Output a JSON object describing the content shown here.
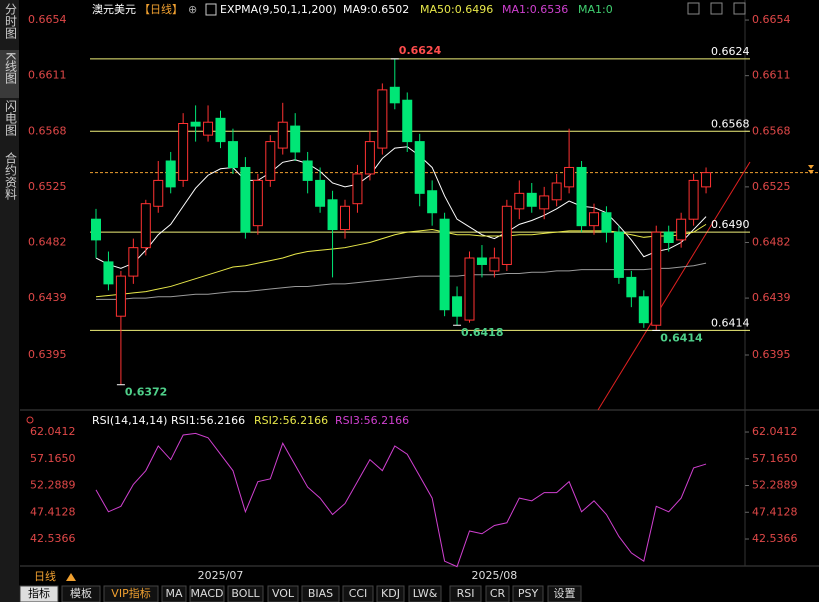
{
  "sidebar": [
    "分时图",
    "K线图",
    "闪电图",
    "合约资料"
  ],
  "header": {
    "symbol": "澳元美元",
    "period": "【日线】",
    "indicator": "EXPMA(9,50,1,1,200)",
    "ma9": "MA9:0.6502",
    "ma50": "MA50:0.6496",
    "ma1": "MA1:0.6536",
    "ma1b": "MA1:0"
  },
  "rsi_header": {
    "name": "RSI(14,14,14)",
    "rsi1": "RSI1:56.2166",
    "rsi2": "RSI2:56.2166",
    "rsi3": "RSI3:56.2166"
  },
  "chart_data": {
    "type": "candlestick",
    "ylim": [
      0.6352,
      0.6662
    ],
    "yticks": [
      0.6654,
      0.6611,
      0.6568,
      0.6525,
      0.6482,
      0.6439,
      0.6395
    ],
    "categories": [
      null,
      null,
      null,
      null,
      null,
      null,
      null,
      null,
      null,
      null,
      "2025/07",
      null,
      null,
      null,
      null,
      null,
      null,
      null,
      null,
      null,
      null,
      null,
      null,
      null,
      null,
      null,
      null,
      null,
      null,
      null,
      null,
      null,
      "2025/08",
      null,
      null,
      null,
      null,
      null,
      null,
      null,
      null,
      null,
      null,
      null,
      null,
      null,
      null,
      null,
      null,
      null
    ],
    "candles": [
      [
        0.65,
        0.6508,
        0.647,
        0.6484
      ],
      [
        0.6467,
        0.6475,
        0.6445,
        0.645
      ],
      [
        0.6425,
        0.646,
        0.6372,
        0.6456
      ],
      [
        0.6456,
        0.6485,
        0.645,
        0.6478
      ],
      [
        0.6478,
        0.6515,
        0.6472,
        0.6512
      ],
      [
        0.651,
        0.6545,
        0.6505,
        0.653
      ],
      [
        0.6545,
        0.6552,
        0.652,
        0.6525
      ],
      [
        0.653,
        0.6582,
        0.6525,
        0.6574
      ],
      [
        0.6575,
        0.6588,
        0.656,
        0.6572
      ],
      [
        0.6565,
        0.6588,
        0.656,
        0.6575
      ],
      [
        0.6578,
        0.6584,
        0.6555,
        0.656
      ],
      [
        0.656,
        0.657,
        0.6535,
        0.654
      ],
      [
        0.654,
        0.6548,
        0.6485,
        0.649
      ],
      [
        0.6495,
        0.6535,
        0.6488,
        0.653
      ],
      [
        0.653,
        0.6565,
        0.6525,
        0.656
      ],
      [
        0.6555,
        0.659,
        0.655,
        0.6575
      ],
      [
        0.6572,
        0.6582,
        0.6545,
        0.6552
      ],
      [
        0.6545,
        0.6552,
        0.652,
        0.653
      ],
      [
        0.653,
        0.654,
        0.6505,
        0.651
      ],
      [
        0.6515,
        0.6522,
        0.6455,
        0.6492
      ],
      [
        0.6492,
        0.6515,
        0.6485,
        0.651
      ],
      [
        0.6512,
        0.6542,
        0.6505,
        0.6535
      ],
      [
        0.6535,
        0.6568,
        0.653,
        0.656
      ],
      [
        0.6555,
        0.6605,
        0.655,
        0.66
      ],
      [
        0.6602,
        0.6624,
        0.6585,
        0.659
      ],
      [
        0.6592,
        0.6598,
        0.6552,
        0.656
      ],
      [
        0.656,
        0.6566,
        0.651,
        0.652
      ],
      [
        0.6522,
        0.653,
        0.6495,
        0.6505
      ],
      [
        0.65,
        0.6505,
        0.6425,
        0.643
      ],
      [
        0.644,
        0.6448,
        0.6418,
        0.6425
      ],
      [
        0.6422,
        0.6475,
        0.642,
        0.647
      ],
      [
        0.647,
        0.648,
        0.6455,
        0.6465
      ],
      [
        0.646,
        0.6478,
        0.6455,
        0.647
      ],
      [
        0.6465,
        0.6515,
        0.646,
        0.651
      ],
      [
        0.6508,
        0.653,
        0.65,
        0.652
      ],
      [
        0.652,
        0.6528,
        0.6505,
        0.651
      ],
      [
        0.6508,
        0.6525,
        0.65,
        0.6518
      ],
      [
        0.6515,
        0.6535,
        0.651,
        0.6528
      ],
      [
        0.6525,
        0.657,
        0.652,
        0.654
      ],
      [
        0.654,
        0.6545,
        0.649,
        0.6495
      ],
      [
        0.6495,
        0.6512,
        0.6488,
        0.6505
      ],
      [
        0.6505,
        0.651,
        0.6482,
        0.649
      ],
      [
        0.649,
        0.6495,
        0.645,
        0.6455
      ],
      [
        0.6455,
        0.646,
        0.6432,
        0.644
      ],
      [
        0.644,
        0.6445,
        0.6416,
        0.642
      ],
      [
        0.6418,
        0.6495,
        0.6414,
        0.649
      ],
      [
        0.649,
        0.6495,
        0.6475,
        0.6482
      ],
      [
        0.6484,
        0.6505,
        0.6478,
        0.65
      ],
      [
        0.65,
        0.6535,
        0.6495,
        0.653
      ],
      [
        0.6525,
        0.654,
        0.652,
        0.6536
      ]
    ],
    "up_color": "#ff3232",
    "down_color": "#00e676",
    "series": [
      {
        "color": "#ffffff",
        "values": [
          0.647,
          0.6465,
          0.6462,
          0.6466,
          0.6476,
          0.6488,
          0.6496,
          0.651,
          0.6524,
          0.6534,
          0.6539,
          0.654,
          0.653,
          0.653,
          0.6536,
          0.6544,
          0.6546,
          0.6543,
          0.6537,
          0.6528,
          0.6525,
          0.6527,
          0.6534,
          0.6547,
          0.6555,
          0.6556,
          0.6549,
          0.654,
          0.6518,
          0.65,
          0.6494,
          0.6488,
          0.6485,
          0.649,
          0.6496,
          0.6499,
          0.6503,
          0.6508,
          0.6514,
          0.651,
          0.6509,
          0.6505,
          0.6495,
          0.6484,
          0.6471,
          0.6475,
          0.6477,
          0.6482,
          0.6492,
          0.6502
        ]
      },
      {
        "color": "#e8e84a",
        "values": [
          0.644,
          0.6441,
          0.6442,
          0.6443,
          0.6444,
          0.6446,
          0.6448,
          0.6451,
          0.6454,
          0.6457,
          0.646,
          0.6463,
          0.6464,
          0.6466,
          0.6468,
          0.647,
          0.6473,
          0.6475,
          0.6476,
          0.6477,
          0.6478,
          0.648,
          0.6482,
          0.6485,
          0.6488,
          0.649,
          0.6491,
          0.6492,
          0.649,
          0.6488,
          0.6488,
          0.6487,
          0.6487,
          0.6487,
          0.6488,
          0.6488,
          0.6489,
          0.649,
          0.6491,
          0.6491,
          0.6491,
          0.6491,
          0.649,
          0.6488,
          0.6486,
          0.6487,
          0.6487,
          0.6488,
          0.649,
          0.6496
        ]
      },
      {
        "color": "#9a9a9a",
        "values": [
          0.6438,
          0.6438,
          0.6438,
          0.6439,
          0.6439,
          0.644,
          0.644,
          0.6441,
          0.6442,
          0.6442,
          0.6443,
          0.6444,
          0.6444,
          0.6445,
          0.6446,
          0.6447,
          0.6448,
          0.6448,
          0.6449,
          0.645,
          0.645,
          0.6451,
          0.6452,
          0.6453,
          0.6454,
          0.6455,
          0.6456,
          0.6456,
          0.6456,
          0.6456,
          0.6457,
          0.6457,
          0.6457,
          0.6458,
          0.6458,
          0.6459,
          0.6459,
          0.646,
          0.646,
          0.6461,
          0.6461,
          0.6461,
          0.6461,
          0.6461,
          0.6461,
          0.6462,
          0.6462,
          0.6463,
          0.6464,
          0.6466
        ]
      }
    ],
    "levels": [
      {
        "value": 0.6624,
        "label": "0.6624"
      },
      {
        "value": 0.6568,
        "label": "0.6568"
      },
      {
        "value": 0.649,
        "label": "0.6490"
      },
      {
        "value": 0.6414,
        "label": "0.6414"
      }
    ],
    "level_color": "#f0f07a",
    "point_labels": [
      {
        "value": 0.6624,
        "label": "0.6624",
        "color": "#ff4d4d"
      },
      {
        "value": 0.6372,
        "label": "0.6372",
        "color": "#4fd08a"
      },
      {
        "value": 0.6418,
        "label": "0.6418",
        "color": "#4fd08a"
      },
      {
        "value": 0.6414,
        "label": "0.6414",
        "color": "#4fd08a"
      }
    ],
    "rsi": {
      "ylim": [
        38.0,
        65.0
      ],
      "yticks": [
        62.0412,
        57.165,
        52.2889,
        47.4128,
        42.5366
      ],
      "ytick_labels": [
        "62.0412",
        "57.1650",
        "52.2889",
        "47.4128",
        "42.5366"
      ],
      "color": "#d040d0",
      "values": [
        51.5,
        47.5,
        48.5,
        52.5,
        55,
        59.5,
        57,
        61.5,
        61.8,
        61,
        58,
        55,
        47.5,
        53,
        53.5,
        60,
        56,
        52,
        50,
        47,
        49,
        53,
        57,
        55,
        59.5,
        58,
        54,
        50,
        38.5,
        37.5,
        44,
        43.5,
        45,
        45.5,
        50,
        49.5,
        51,
        51,
        53,
        47.5,
        49.5,
        47,
        43,
        40,
        38.5,
        48.5,
        47.5,
        50,
        55.5,
        56.2
      ]
    }
  },
  "period_button": "日线",
  "tabs": [
    "指标",
    "模板",
    "VIP指标",
    "MA",
    "MACD",
    "BOLL",
    "VOL",
    "BIAS",
    "CCI",
    "KDJ",
    "LW&",
    "RSI",
    "CR",
    "PSY",
    "设置"
  ]
}
